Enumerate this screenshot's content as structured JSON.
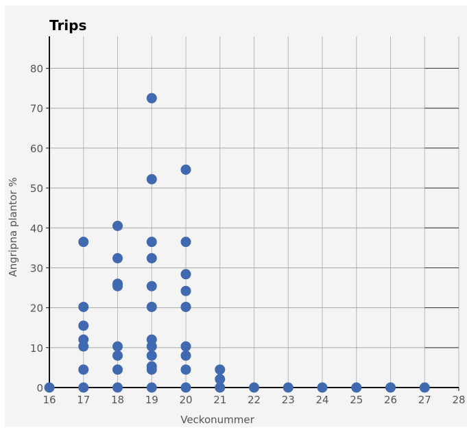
{
  "chart_data": {
    "type": "scatter",
    "title": "Trips",
    "xlabel": "Veckonummer",
    "ylabel": "Angripna plantor %",
    "xlim": [
      16,
      28
    ],
    "ylim": [
      0,
      88
    ],
    "xticks": [
      16,
      17,
      18,
      19,
      20,
      21,
      22,
      23,
      24,
      25,
      26,
      27,
      28
    ],
    "yticks": [
      0,
      10,
      20,
      30,
      40,
      50,
      60,
      70,
      80
    ],
    "grid": true,
    "legend": "none",
    "marker_color": "#4169b0",
    "series": [
      {
        "points": [
          [
            16,
            0
          ],
          [
            17,
            0
          ],
          [
            17,
            4.5
          ],
          [
            17,
            10.3
          ],
          [
            17,
            12
          ],
          [
            17,
            15.5
          ],
          [
            17,
            20.2
          ],
          [
            17,
            36.5
          ],
          [
            18,
            0
          ],
          [
            18,
            4.5
          ],
          [
            18,
            8
          ],
          [
            18,
            10.3
          ],
          [
            18,
            25.4
          ],
          [
            18,
            26
          ],
          [
            18,
            32.4
          ],
          [
            18,
            40.5
          ],
          [
            19,
            0
          ],
          [
            19,
            4.5
          ],
          [
            19,
            5.3
          ],
          [
            19,
            8
          ],
          [
            19,
            10.3
          ],
          [
            19,
            12
          ],
          [
            19,
            20.2
          ],
          [
            19,
            25.4
          ],
          [
            19,
            32.4
          ],
          [
            19,
            36.5
          ],
          [
            19,
            52.2
          ],
          [
            19,
            72.5
          ],
          [
            20,
            0
          ],
          [
            20,
            4.5
          ],
          [
            20,
            8
          ],
          [
            20,
            10.3
          ],
          [
            20,
            20.2
          ],
          [
            20,
            24.2
          ],
          [
            20,
            28.4
          ],
          [
            20,
            36.5
          ],
          [
            20,
            54.6
          ],
          [
            21,
            0
          ],
          [
            21,
            2.1
          ],
          [
            21,
            4.5
          ],
          [
            22,
            0
          ],
          [
            23,
            0
          ],
          [
            24,
            0
          ],
          [
            25,
            0
          ],
          [
            26,
            0
          ],
          [
            27,
            0
          ]
        ]
      }
    ]
  }
}
